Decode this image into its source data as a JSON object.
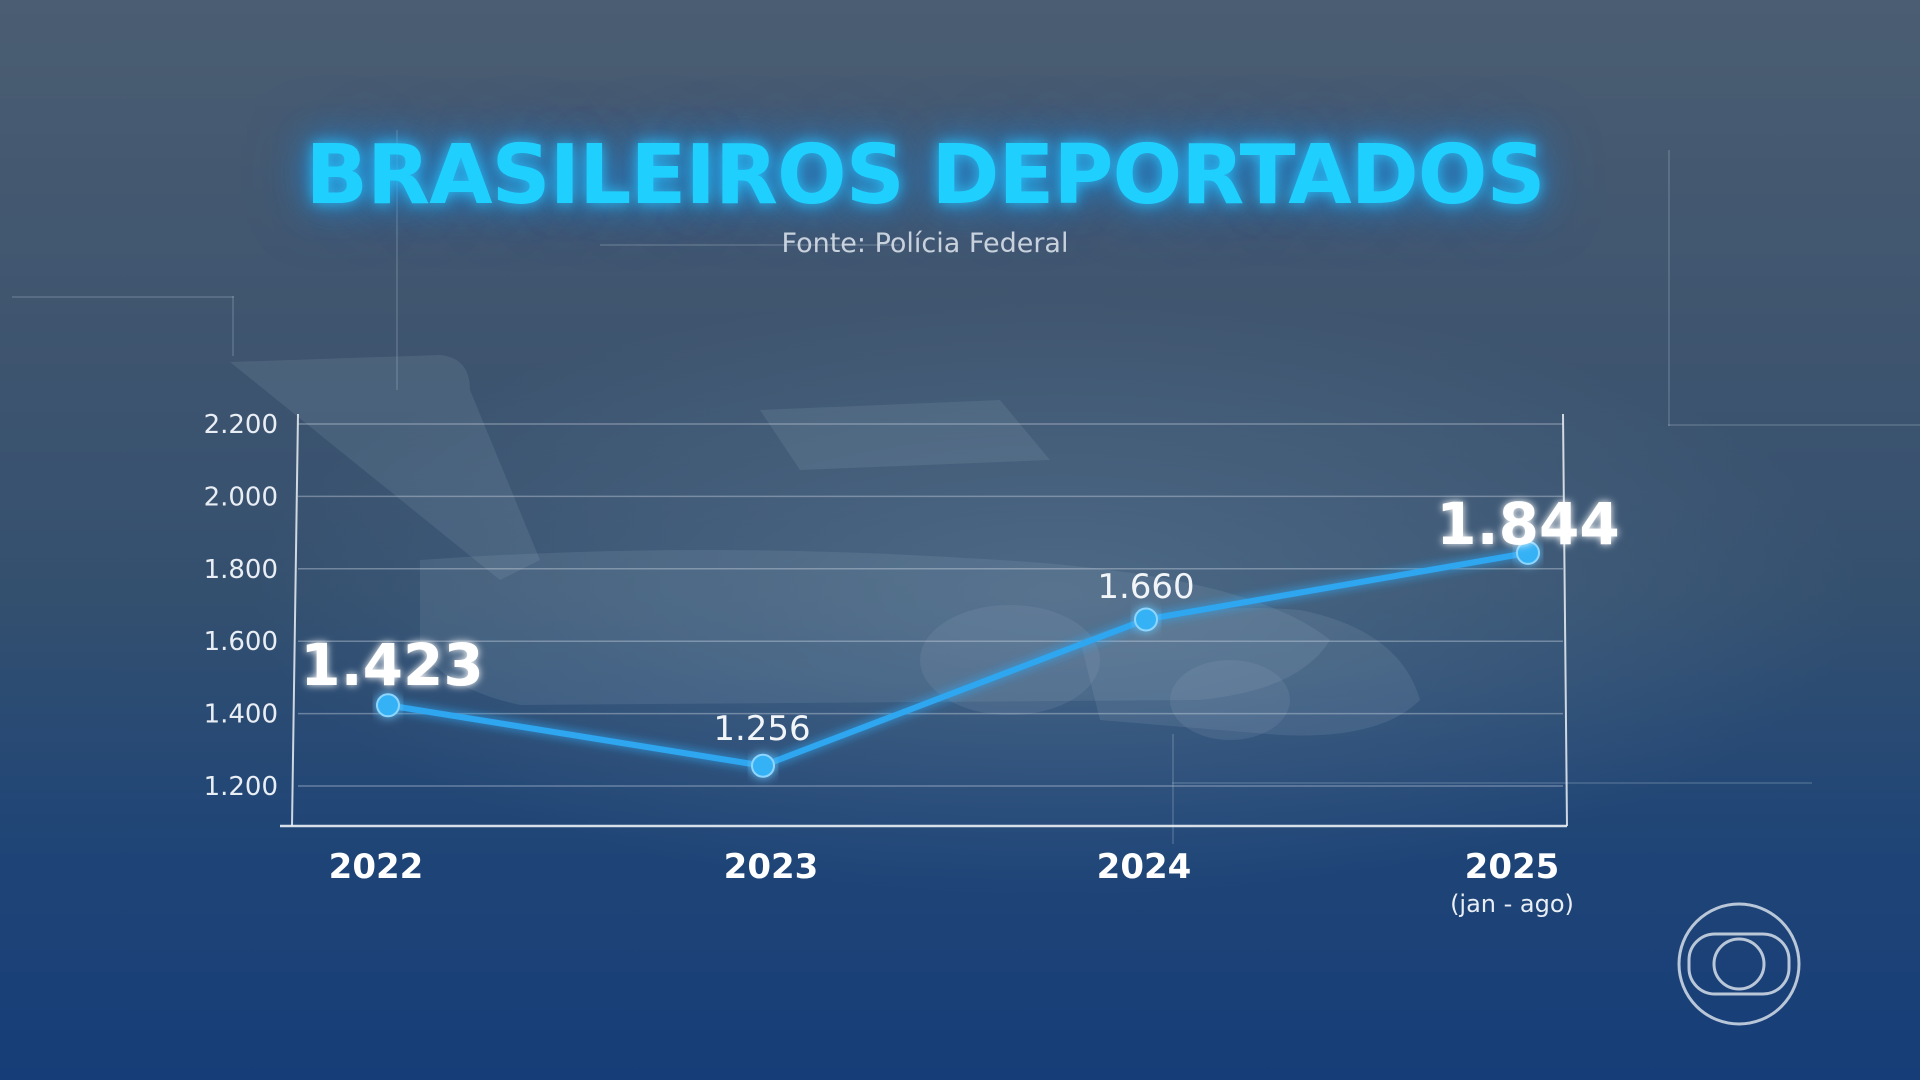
{
  "title": "BRASILEIROS DEPORTADOS",
  "source": "Fonte: Polícia Federal",
  "colors": {
    "title": "#1fd0ff",
    "line": "#2ea6f0",
    "point": "#35b2f5"
  },
  "logo": {
    "icon": "globo-logo-icon"
  },
  "chart_data": {
    "type": "line",
    "title": "BRASILEIROS DEPORTADOS",
    "subtitle": "Fonte: Polícia Federal",
    "xlabel": "",
    "ylabel": "",
    "grid": true,
    "categories": [
      {
        "label": "2022",
        "sub": ""
      },
      {
        "label": "2023",
        "sub": ""
      },
      {
        "label": "2024",
        "sub": ""
      },
      {
        "label": "2025",
        "sub": "(jan - ago)"
      }
    ],
    "series": [
      {
        "values": [
          1423,
          1256,
          1660,
          1844
        ],
        "labels": [
          "1.423",
          "1.256",
          "1.660",
          "1.844"
        ],
        "emphasis": [
          true,
          false,
          false,
          true
        ]
      }
    ],
    "y_ticks": [
      {
        "value": 1200,
        "label": "1.200"
      },
      {
        "value": 1400,
        "label": "1.400"
      },
      {
        "value": 1600,
        "label": "1.600"
      },
      {
        "value": 1800,
        "label": "1.800"
      },
      {
        "value": 2000,
        "label": "2.000"
      },
      {
        "value": 2200,
        "label": "2.200"
      }
    ],
    "ylim": [
      1100,
      2200
    ]
  }
}
